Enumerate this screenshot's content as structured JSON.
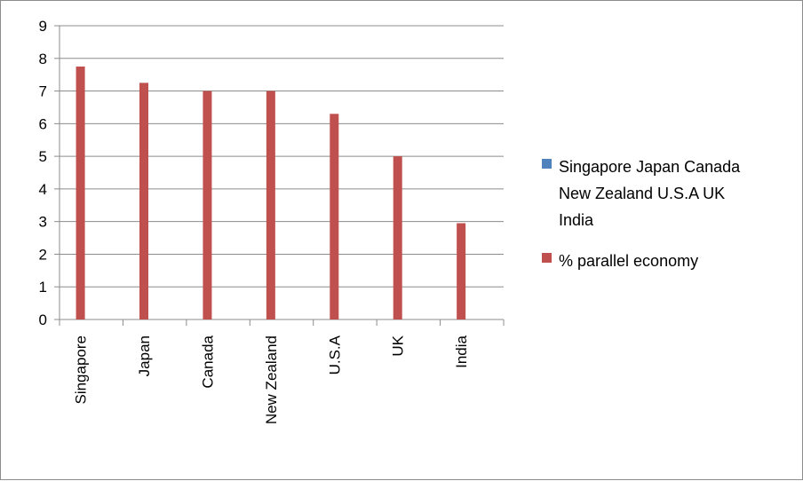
{
  "chart_data": {
    "type": "bar",
    "categories": [
      "Singapore",
      "Japan",
      "Canada",
      "New Zealand",
      "U.S.A",
      "UK",
      "India"
    ],
    "series": [
      {
        "name": "Singapore Japan Canada New Zealand U.S.A UK India",
        "values": [
          null,
          null,
          null,
          null,
          null,
          null,
          null
        ],
        "color": "#4f81bd"
      },
      {
        "name": "% parallel economy",
        "values": [
          7.75,
          7.25,
          7.0,
          7.0,
          6.3,
          5.0,
          2.95
        ],
        "color": "#c0504d"
      }
    ],
    "ylim": [
      0,
      9
    ],
    "yticks": [
      "0",
      "1",
      "2",
      "3",
      "4",
      "5",
      "6",
      "7",
      "8",
      "9"
    ],
    "grid": true,
    "legend": {
      "placement": "right",
      "entries": [
        {
          "lines": [
            "Singapore Japan Canada",
            "New Zealand U.S.A UK",
            "India"
          ],
          "color": "#4f81bd"
        },
        {
          "lines": [
            "% parallel economy"
          ],
          "color": "#c0504d"
        }
      ]
    }
  }
}
